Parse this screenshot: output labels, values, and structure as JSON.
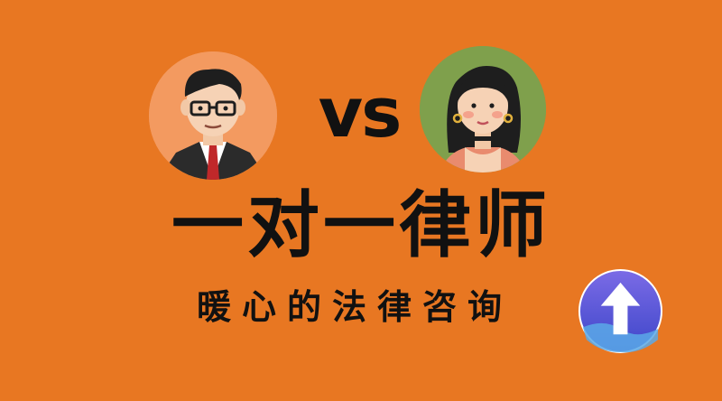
{
  "vs_label": "vs",
  "title": "一对一律师",
  "subtitle": "暖心的法律咨询",
  "avatars": {
    "lawyer": "male-lawyer-avatar",
    "client": "female-client-avatar"
  },
  "badge_icon": "up-arrow-icon",
  "colors": {
    "background": "#E87722",
    "text": "#111111",
    "lawyer_circle": "#F39A60",
    "client_circle": "#7FA04C",
    "badge": "#5B57D9"
  }
}
